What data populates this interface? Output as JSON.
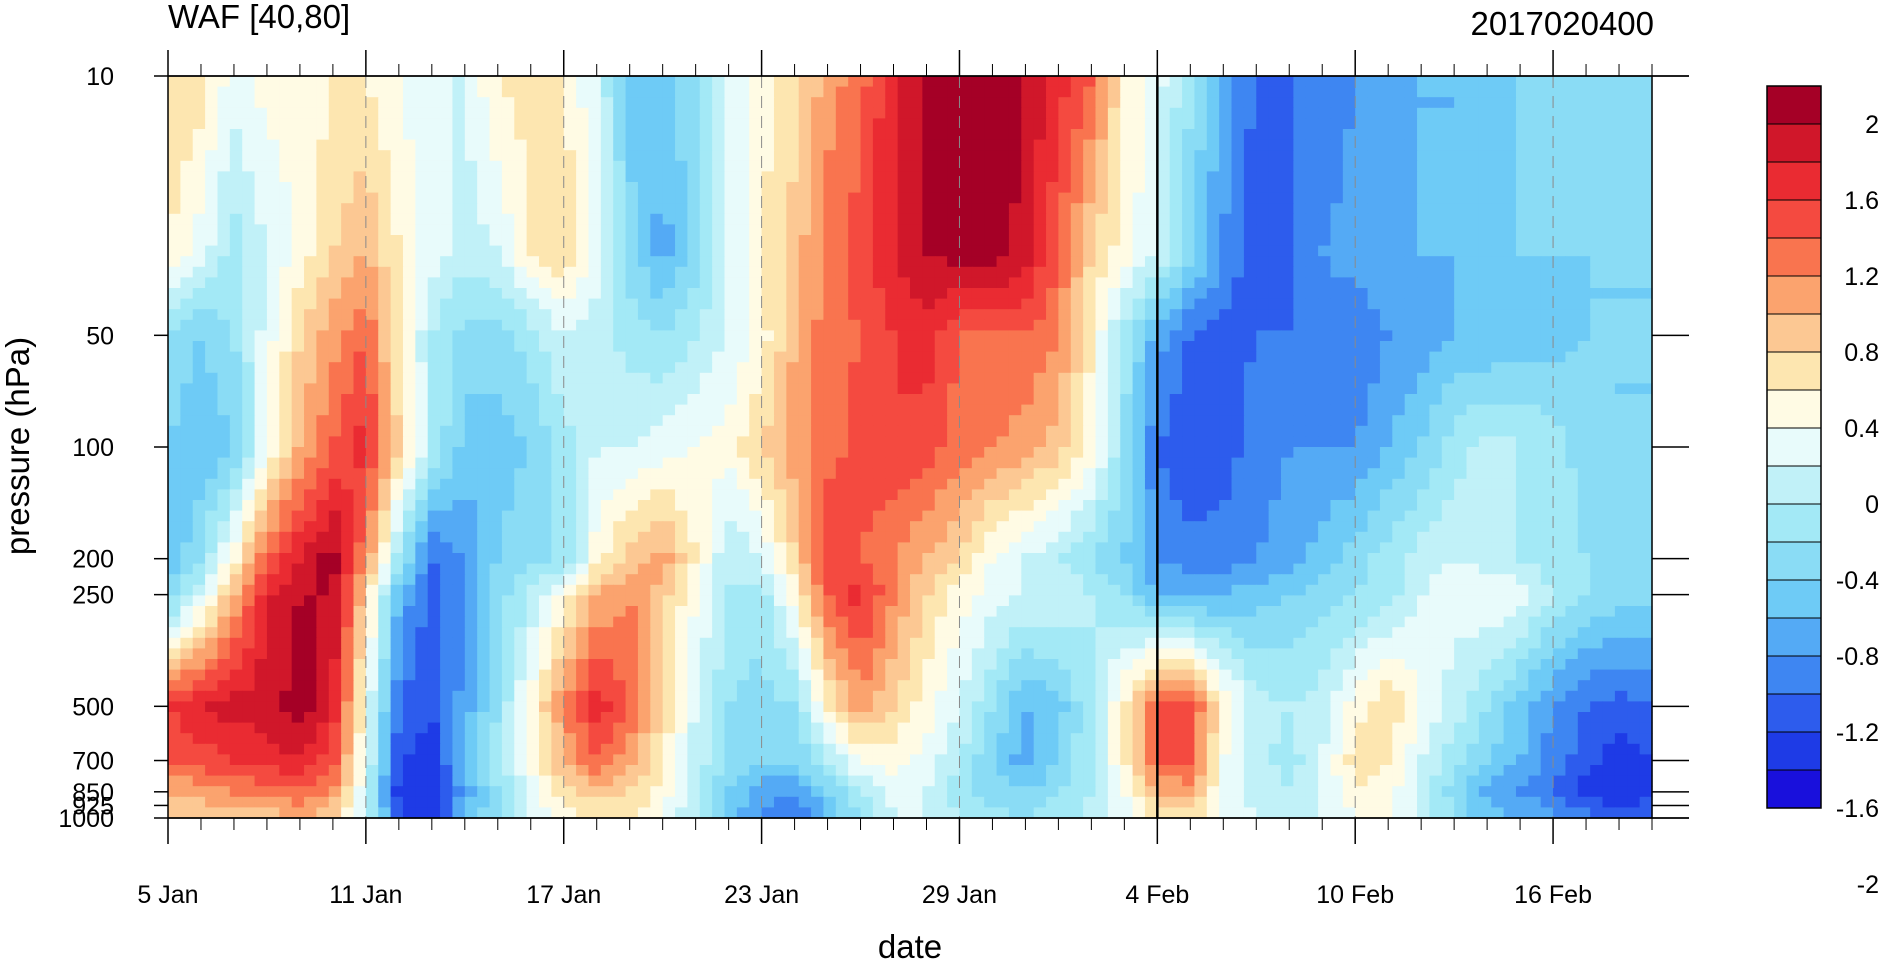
{
  "chart_data": {
    "type": "heatmap",
    "title_left": "WAF [40,80]",
    "title_right": "2017020400",
    "xlabel": "date",
    "ylabel": "pressure (hPa)",
    "x_ticks": [
      "5 Jan",
      "11 Jan",
      "17 Jan",
      "23 Jan",
      "29 Jan",
      "4 Feb",
      "10 Feb",
      "16 Feb"
    ],
    "x_tick_days": [
      0,
      6,
      12,
      18,
      24,
      30,
      36,
      42
    ],
    "x_range_days": [
      0,
      45
    ],
    "y_ticks": [
      "10",
      "50",
      "100",
      "200",
      "250",
      "500",
      "700",
      "850",
      "925",
      "1000"
    ],
    "y_tick_values": [
      10,
      50,
      100,
      200,
      250,
      500,
      700,
      850,
      925,
      1000
    ],
    "y_range": [
      1000,
      10
    ],
    "y_scale": "log",
    "marker_day": 30,
    "colorbar": {
      "labels": [
        "2",
        "1.6",
        "1.2",
        "0.8",
        "0.4",
        "0",
        "-0.4",
        "-0.8",
        "-1.2",
        "-1.6",
        "-2"
      ],
      "levels": [
        2.0,
        1.8,
        1.6,
        1.4,
        1.2,
        1.0,
        0.8,
        0.6,
        0.4,
        0.2,
        0.0,
        -0.2,
        -0.4,
        -0.6,
        -0.8,
        -1.0,
        -1.2,
        -1.4,
        -1.6,
        -1.8,
        -2.0
      ],
      "colors": [
        "#a50026",
        "#d0172a",
        "#ea2b32",
        "#f44a40",
        "#f9744f",
        "#fba36e",
        "#fcc893",
        "#fde6b0",
        "#fffbe4",
        "#e8fbfb",
        "#c1f1f8",
        "#a3e9f6",
        "#8adcf5",
        "#6ecbf6",
        "#54aaf5",
        "#3e86f2",
        "#2d5ced",
        "#1e3be6",
        "#1910dc"
      ]
    },
    "grid": {
      "days": [
        0,
        1,
        2,
        3,
        4,
        5,
        6,
        7,
        8,
        9,
        10,
        11,
        12,
        13,
        14,
        15,
        16,
        17,
        18,
        19,
        20,
        21,
        22,
        23,
        24,
        25,
        26,
        27,
        28,
        29,
        30,
        31,
        32,
        33,
        34,
        35,
        36,
        37,
        38,
        39,
        40,
        41,
        42,
        43,
        44,
        45
      ],
      "levels_hPa": [
        10,
        30,
        50,
        100,
        200,
        250,
        500,
        700,
        850,
        1000
      ],
      "values": [
        [
          0.6,
          0.5,
          0.1,
          0.3,
          0.2,
          0.4,
          0.4,
          0.2,
          0.0,
          0.0,
          0.4,
          0.5,
          0.4,
          0.0,
          -0.7,
          -0.7,
          -0.4,
          0.0,
          0.3,
          0.5,
          0.9,
          1.1,
          1.6,
          1.8,
          2.0,
          2.1,
          1.8,
          1.5,
          1.2,
          0.4,
          0.1,
          -0.4,
          -0.9,
          -1.2,
          -1.2,
          -1.2,
          -1.0,
          -0.9,
          -0.8,
          -0.8,
          -0.7,
          -0.6,
          -0.5,
          -0.5,
          -0.5,
          -0.5
        ],
        [
          0.4,
          0.1,
          -0.3,
          0.0,
          0.3,
          0.6,
          0.8,
          0.4,
          0.1,
          -0.1,
          0.0,
          0.4,
          0.6,
          0.1,
          -0.5,
          -0.9,
          -0.5,
          0.0,
          0.4,
          0.7,
          1.1,
          1.3,
          1.6,
          1.8,
          1.9,
          1.9,
          1.7,
          1.2,
          0.6,
          0.3,
          0.0,
          -0.5,
          -1.0,
          -1.4,
          -1.2,
          -1.0,
          -0.9,
          -0.8,
          -0.8,
          -0.8,
          -0.7,
          -0.6,
          -0.6,
          -0.6,
          -0.6,
          -0.6
        ],
        [
          -0.4,
          -0.6,
          -0.4,
          0.1,
          0.6,
          0.9,
          1.2,
          0.4,
          -0.2,
          -0.5,
          -0.5,
          -0.3,
          0.0,
          -0.1,
          -0.3,
          -0.4,
          -0.2,
          0.0,
          0.3,
          0.8,
          1.1,
          1.2,
          1.4,
          1.5,
          1.2,
          1.2,
          1.2,
          1.0,
          0.4,
          -0.3,
          -0.9,
          -1.2,
          -1.3,
          -1.2,
          -1.2,
          -1.1,
          -1.2,
          -1.0,
          -0.9,
          -0.8,
          -0.8,
          -0.7,
          -0.7,
          -0.6,
          -0.6,
          -0.6
        ],
        [
          -0.6,
          -0.8,
          -0.6,
          0.2,
          0.8,
          1.2,
          1.5,
          0.6,
          -0.2,
          -0.7,
          -0.7,
          -0.6,
          -0.3,
          0.0,
          0.0,
          0.1,
          0.2,
          0.3,
          0.6,
          0.9,
          1.1,
          1.3,
          1.4,
          1.3,
          1.1,
          1.0,
          0.9,
          0.7,
          0.3,
          -0.4,
          -1.2,
          -1.4,
          -1.3,
          -1.1,
          -1.0,
          -1.0,
          -1.0,
          -0.8,
          -0.6,
          -0.3,
          -0.1,
          -0.2,
          -0.3,
          -0.5,
          -0.6,
          -0.6
        ],
        [
          -0.8,
          -0.4,
          0.3,
          1.2,
          1.6,
          1.9,
          1.0,
          -0.3,
          -1.2,
          -1.0,
          -0.6,
          -0.4,
          -0.4,
          0.3,
          0.7,
          0.9,
          0.4,
          -0.2,
          0.0,
          0.6,
          1.4,
          1.2,
          1.0,
          0.8,
          0.6,
          0.2,
          0.0,
          -0.2,
          -0.4,
          -0.6,
          -1.0,
          -1.1,
          -1.1,
          -1.0,
          -0.9,
          -0.7,
          -0.5,
          -0.3,
          -0.1,
          0.0,
          -0.1,
          -0.2,
          -0.3,
          -0.4,
          -0.5,
          -0.5
        ],
        [
          -0.6,
          0.0,
          0.8,
          1.6,
          1.8,
          1.8,
          0.6,
          -0.8,
          -1.3,
          -1.0,
          -0.5,
          -0.2,
          0.3,
          0.8,
          1.0,
          0.7,
          0.2,
          -0.2,
          -0.3,
          0.3,
          1.2,
          1.5,
          1.0,
          0.6,
          0.3,
          0.1,
          0.0,
          0.0,
          -0.2,
          -0.4,
          -0.8,
          -0.9,
          -0.8,
          -0.7,
          -0.6,
          -0.5,
          -0.4,
          -0.3,
          0.0,
          0.1,
          0.2,
          0.1,
          -0.2,
          -0.4,
          -0.5,
          -0.5
        ],
        [
          1.4,
          1.6,
          1.7,
          1.7,
          1.9,
          1.6,
          0.2,
          -1.2,
          -1.4,
          -0.9,
          -0.4,
          0.3,
          1.0,
          1.5,
          1.2,
          0.6,
          0.0,
          -0.4,
          -0.5,
          -0.4,
          0.4,
          0.9,
          0.6,
          0.3,
          0.0,
          -0.4,
          -0.8,
          -0.7,
          -0.2,
          0.4,
          1.2,
          1.3,
          0.4,
          -0.1,
          -0.2,
          -0.1,
          0.3,
          0.6,
          0.2,
          -0.1,
          -0.4,
          -0.7,
          -1.0,
          -1.2,
          -1.3,
          -1.2
        ],
        [
          1.2,
          1.3,
          1.4,
          1.5,
          1.6,
          1.3,
          0.1,
          -1.4,
          -1.5,
          -0.8,
          -0.3,
          0.2,
          0.8,
          1.2,
          0.9,
          0.4,
          -0.1,
          -0.4,
          -0.6,
          -0.6,
          -0.2,
          0.2,
          0.3,
          0.1,
          -0.2,
          -0.6,
          -0.9,
          -0.6,
          -0.2,
          0.4,
          1.2,
          1.2,
          0.2,
          -0.1,
          -0.3,
          0.0,
          0.5,
          0.4,
          0.0,
          -0.3,
          -0.6,
          -0.8,
          -1.1,
          -1.3,
          -1.5,
          -1.4
        ],
        [
          0.8,
          0.9,
          1.0,
          1.1,
          1.2,
          1.0,
          0.0,
          -1.5,
          -1.6,
          -0.9,
          -0.4,
          0.1,
          0.5,
          0.7,
          0.6,
          0.3,
          -0.2,
          -0.6,
          -0.9,
          -1.0,
          -0.6,
          -0.2,
          0.1,
          0.0,
          -0.3,
          -0.5,
          -0.6,
          -0.4,
          -0.2,
          0.2,
          0.8,
          0.9,
          0.1,
          -0.1,
          -0.2,
          0.0,
          0.4,
          0.3,
          -0.1,
          -0.5,
          -0.9,
          -1.0,
          -1.2,
          -1.5,
          -1.6,
          -1.5
        ],
        [
          0.6,
          0.6,
          0.6,
          0.7,
          0.8,
          0.6,
          0.0,
          -1.4,
          -1.5,
          -0.8,
          -0.4,
          0.0,
          0.3,
          0.4,
          0.4,
          0.2,
          -0.2,
          -0.7,
          -1.0,
          -1.2,
          -0.8,
          -0.4,
          0.0,
          0.0,
          -0.2,
          -0.3,
          -0.4,
          -0.3,
          -0.1,
          0.1,
          0.4,
          0.5,
          0.1,
          0.0,
          -0.1,
          0.0,
          0.2,
          0.2,
          -0.1,
          -0.4,
          -0.7,
          -0.8,
          -0.9,
          -1.1,
          -1.2,
          -1.2
        ]
      ]
    }
  }
}
